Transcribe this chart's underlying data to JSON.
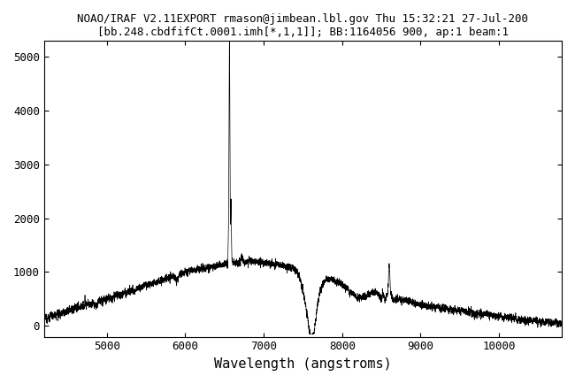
{
  "title_line1": "NOAO/IRAF V2.11EXPORT rmason@jimbean.lbl.gov Thu 15:32:21 27-Jul-200",
  "title_line2": "[bb.248.cbdfifCt.0001.imh[*,1,1]]; BB:1164056 900, ap:1 beam:1",
  "xlabel": "Wavelength (angstroms)",
  "ylabel": "",
  "xlim": [
    4200,
    10800
  ],
  "ylim": [
    -200,
    5300
  ],
  "yticks": [
    0,
    1000,
    2000,
    3000,
    4000,
    5000
  ],
  "xticks": [
    5000,
    6000,
    7000,
    8000,
    9000,
    10000
  ],
  "line_color": "#000000",
  "background_color": "#ffffff",
  "title_fontsize": 9,
  "label_fontsize": 11
}
